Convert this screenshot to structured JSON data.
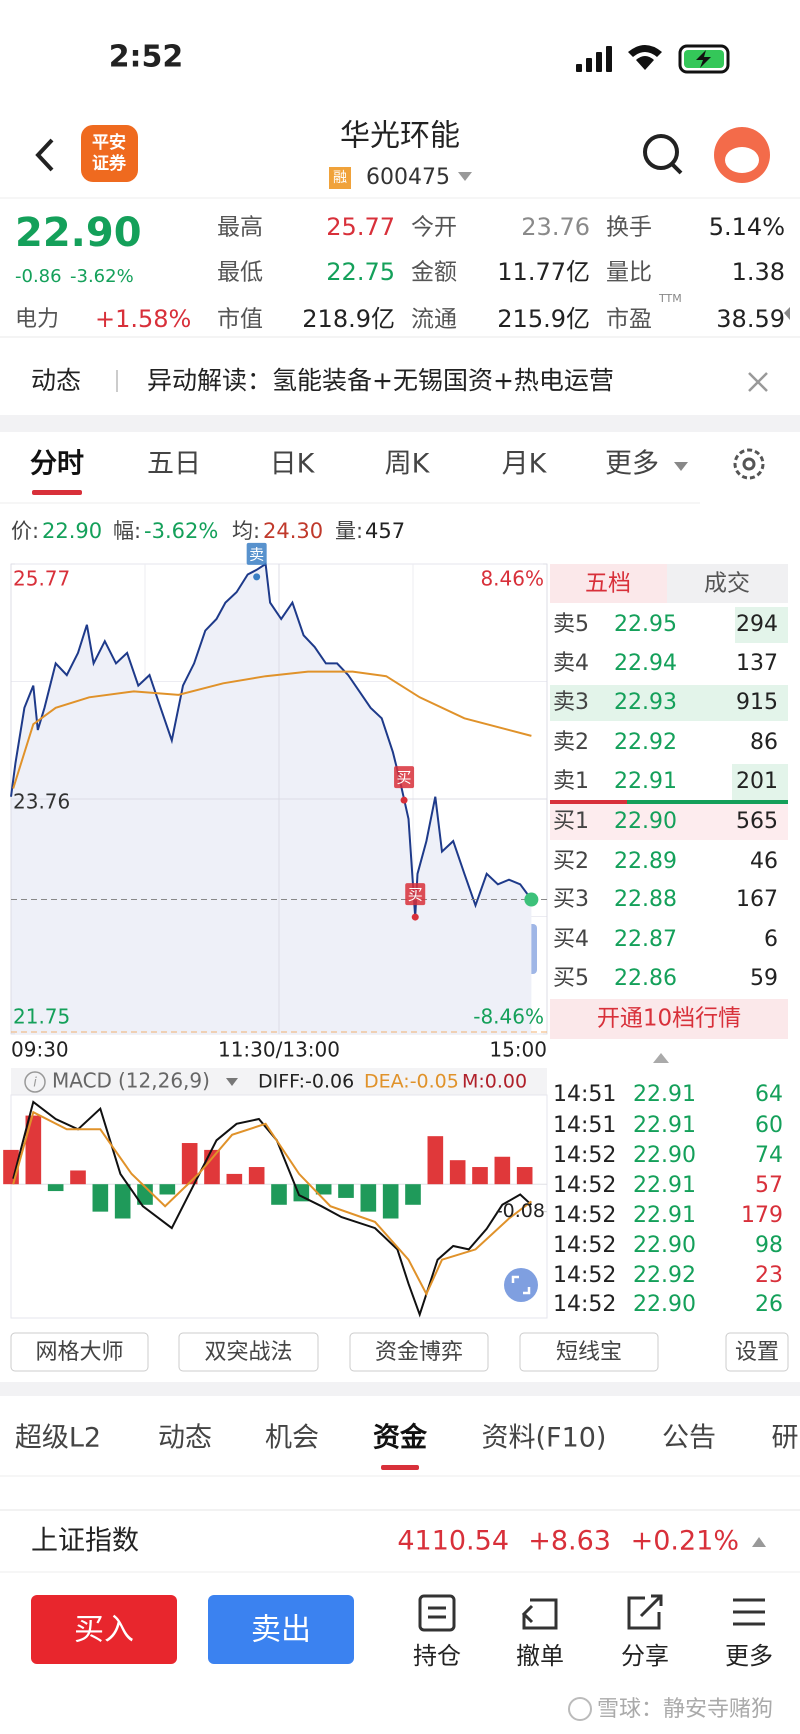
{
  "status_bar": {
    "time": "2:52"
  },
  "header": {
    "logo": [
      "平安",
      "证券"
    ],
    "title": "华光环能",
    "badge": "融",
    "code": "600475"
  },
  "quote": {
    "price": "22.90",
    "change": "-0.86",
    "change_pct": "-3.62%",
    "sector": "电力",
    "sector_change": "+1.58%",
    "stats": [
      {
        "label": "最高",
        "value": "25.77",
        "color": "#d8303a"
      },
      {
        "label": "今开",
        "value": "23.76",
        "color": "#8a8a8a"
      },
      {
        "label": "换手",
        "value": "5.14%",
        "color": "#222222"
      },
      {
        "label": "最低",
        "value": "22.75",
        "color": "#14a05a"
      },
      {
        "label": "金额",
        "value": "11.77亿",
        "color": "#222222"
      },
      {
        "label": "量比",
        "value": "1.38",
        "color": "#222222"
      },
      {
        "label": "市值",
        "value": "218.9亿",
        "color": "#222222"
      },
      {
        "label": "流通",
        "value": "215.9亿",
        "color": "#222222"
      },
      {
        "label": "市盈",
        "value": "38.59",
        "color": "#222222"
      }
    ],
    "ttm": "TTM"
  },
  "banner": {
    "tag": "动态",
    "text": "异动解读：氢能装备+无锡国资+热电运营"
  },
  "chart_tabs": [
    "分时",
    "五日",
    "日K",
    "周K",
    "月K",
    "更多"
  ],
  "info_line": [
    {
      "label": "价:",
      "value": "22.90",
      "color": "#14a05a"
    },
    {
      "label": "幅:",
      "value": "-3.62%",
      "color": "#14a05a"
    },
    {
      "label": "均:",
      "value": "24.30",
      "color": "#c0392b"
    },
    {
      "label": "量:",
      "value": "457",
      "color": "#222222"
    }
  ],
  "order_book": {
    "tabs": [
      "五档",
      "成交"
    ],
    "asks": [
      [
        "卖5",
        "22.95",
        "294"
      ],
      [
        "卖4",
        "22.94",
        "137"
      ],
      [
        "卖3",
        "22.93",
        "915"
      ],
      [
        "卖2",
        "22.92",
        "86"
      ],
      [
        "卖1",
        "22.91",
        "201"
      ]
    ],
    "bids": [
      [
        "买1",
        "22.90",
        "565"
      ],
      [
        "买2",
        "22.89",
        "46"
      ],
      [
        "买3",
        "22.88",
        "167"
      ],
      [
        "买4",
        "22.87",
        "6"
      ],
      [
        "买5",
        "22.86",
        "59"
      ]
    ],
    "upgrade": "开通10档行情"
  },
  "trades": [
    {
      "time": "14:51",
      "price": "22.91",
      "volume": "64",
      "color": "#14a05a"
    },
    {
      "time": "14:51",
      "price": "22.91",
      "volume": "60",
      "color": "#14a05a"
    },
    {
      "time": "14:52",
      "price": "22.90",
      "volume": "74",
      "color": "#14a05a"
    },
    {
      "time": "14:52",
      "price": "22.91",
      "volume": "57",
      "color": "#d8303a"
    },
    {
      "time": "14:52",
      "price": "22.91",
      "volume": "179",
      "color": "#d8303a"
    },
    {
      "time": "14:52",
      "price": "22.90",
      "volume": "98",
      "color": "#14a05a"
    },
    {
      "time": "14:52",
      "price": "22.92",
      "volume": "23",
      "color": "#d8303a"
    },
    {
      "time": "14:52",
      "price": "22.90",
      "volume": "26",
      "color": "#14a05a"
    }
  ],
  "tools": [
    "网格大师",
    "双突战法",
    "资金博弈",
    "短线宝",
    "设置"
  ],
  "section_tabs": [
    "超级L2",
    "动态",
    "机会",
    "资金",
    "资料(F10)",
    "公告",
    "研"
  ],
  "index_bar": {
    "name": "上证指数",
    "value": "4110.54",
    "change": "+8.63",
    "change_pct": "+0.21%"
  },
  "bottom_bar": {
    "buy": "买入",
    "sell": "卖出",
    "actions": [
      "持仓",
      "撤单",
      "分享",
      "更多"
    ]
  },
  "watermark": "雪球：静安寺赌狗",
  "chart_data": [
    {
      "type": "line",
      "xlim": [
        0,
        240
      ],
      "xticks": [
        {
          "value": 0,
          "label": "09:30"
        },
        {
          "value": 120,
          "label": "11:30/13:00"
        },
        {
          "value": 240,
          "label": "15:00"
        }
      ],
      "ylim": [
        21.75,
        25.77
      ],
      "yticks": [
        25.77,
        23.76,
        21.75
      ],
      "ytick_colors": [
        "#d8303a",
        "#333333",
        "#14a05a"
      ],
      "y2lim": [
        -8.46,
        8.46
      ],
      "y2ticks": [
        {
          "value": 8.46,
          "label": "8.46%"
        },
        {
          "value": -8.46,
          "label": "-8.46%"
        }
      ],
      "y2tick_colors": [
        "#d8303a",
        "#14a05a"
      ],
      "grid": true,
      "series": [
        {
          "color": "#1e3a8a",
          "area_color": "#eef0f8",
          "x": [
            0,
            2,
            6,
            10,
            12,
            15,
            20,
            25,
            30,
            34,
            37,
            42,
            47,
            52,
            57,
            62,
            67,
            72,
            77,
            82,
            87,
            92,
            96,
            101,
            106,
            110,
            114,
            116,
            121,
            126,
            131,
            136,
            141,
            146,
            151,
            156,
            161,
            166,
            171,
            174,
            178,
            181,
            182,
            186,
            190,
            193,
            198,
            203,
            208,
            213,
            218,
            223,
            228,
            233
          ],
          "values": [
            23.78,
            24.07,
            24.54,
            24.73,
            24.35,
            24.54,
            24.92,
            24.82,
            25.01,
            25.25,
            24.92,
            25.11,
            24.92,
            25.01,
            24.73,
            24.82,
            24.54,
            24.26,
            24.73,
            24.92,
            25.2,
            25.3,
            25.44,
            25.53,
            25.68,
            25.72,
            25.77,
            25.44,
            25.3,
            25.44,
            25.16,
            25.06,
            24.92,
            24.92,
            24.82,
            24.68,
            24.54,
            24.45,
            24.16,
            23.93,
            23.59,
            22.75,
            23.12,
            23.4,
            23.78,
            23.31,
            23.4,
            23.12,
            22.85,
            23.12,
            23.03,
            23.07,
            23.03,
            22.9
          ]
        },
        {
          "color": "#e0922a",
          "x": [
            1,
            10,
            20,
            35,
            55,
            75,
            95,
            114,
            133,
            153,
            168,
            183,
            203,
            233
          ],
          "values": [
            23.85,
            24.4,
            24.54,
            24.63,
            24.68,
            24.65,
            24.75,
            24.81,
            24.85,
            24.85,
            24.81,
            24.63,
            24.45,
            24.3
          ]
        }
      ],
      "annotations": [
        {
          "text": "卖",
          "x": 110,
          "y": 25.66,
          "color": "#3b7fc4"
        },
        {
          "text": "买",
          "x": 176,
          "y": 23.75,
          "color": "#d8303a"
        },
        {
          "text": "买",
          "x": 181,
          "y": 22.75,
          "color": "#d8303a"
        }
      ]
    },
    {
      "type": "macd",
      "title": "MACD",
      "params": "(12,26,9)",
      "readouts": [
        "DIFF:-0.06",
        "DEA:-0.05",
        "M:0.00"
      ],
      "readout_colors": [
        "#222222",
        "#e0922a",
        "#b0202a"
      ],
      "xlim": [
        0,
        240
      ],
      "ylim": [
        -0.39,
        0.26
      ],
      "yticks": [
        -0.08
      ],
      "bars": {
        "up_color": "#e0383a",
        "down_color": "#1f9a5a",
        "x": [
          0,
          10,
          20,
          30,
          40,
          50,
          60,
          70,
          80,
          90,
          100,
          110,
          120,
          130,
          140,
          150,
          160,
          170,
          180,
          190,
          200,
          210,
          220,
          230
        ],
        "values": [
          0.1,
          0.2,
          -0.02,
          0.04,
          -0.08,
          -0.1,
          -0.06,
          -0.03,
          0.12,
          0.1,
          0.03,
          0.05,
          -0.06,
          -0.05,
          -0.03,
          -0.04,
          -0.08,
          -0.1,
          -0.06,
          0.14,
          0.07,
          0.05,
          0.08,
          0.05
        ]
      },
      "series": [
        {
          "color": "#111111",
          "x": [
            1,
            10,
            20,
            30,
            40,
            49,
            59,
            72,
            82,
            92,
            101,
            111,
            119,
            129,
            139,
            148,
            163,
            173,
            178,
            183,
            191,
            198,
            205,
            213,
            220,
            228,
            233
          ],
          "values": [
            0.016,
            0.24,
            0.19,
            0.16,
            0.22,
            0.03,
            -0.064,
            -0.128,
            0,
            0.128,
            0.176,
            0.19,
            0.128,
            -0.032,
            -0.064,
            -0.096,
            -0.128,
            -0.19,
            -0.29,
            -0.38,
            -0.22,
            -0.18,
            -0.19,
            -0.13,
            -0.06,
            -0.03,
            -0.06
          ]
        },
        {
          "color": "#e0922a",
          "x": [
            1,
            10,
            25,
            40,
            54,
            69,
            84,
            99,
            114,
            129,
            143,
            163,
            178,
            186,
            193,
            208,
            223,
            233
          ],
          "values": [
            0,
            0.21,
            0.16,
            0.16,
            0.03,
            -0.064,
            0.03,
            0.144,
            0.176,
            0.03,
            -0.064,
            -0.11,
            -0.22,
            -0.32,
            -0.22,
            -0.19,
            -0.1,
            -0.05
          ]
        }
      ]
    }
  ]
}
